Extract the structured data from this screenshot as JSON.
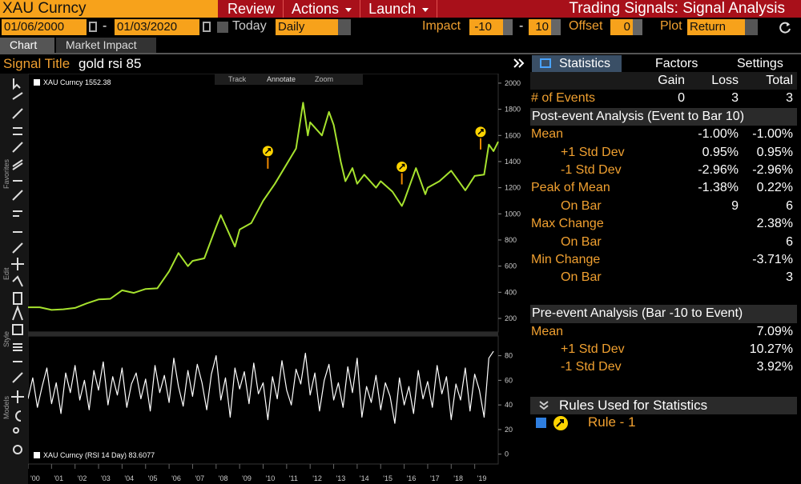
{
  "header": {
    "security": "XAU Curncy",
    "menus": [
      "Review",
      "Actions",
      "Launch"
    ],
    "function_title": "Trading Signals: Signal Analysis"
  },
  "controls": {
    "start_date": "01/06/2000",
    "range_separator": "-",
    "end_date": "01/03/2020",
    "today": "Today",
    "period": "Daily",
    "impact_label": "Impact",
    "impact_from": "-10",
    "impact_to": "10",
    "offset_label": "Offset",
    "offset": "0",
    "plot_label": "Plot",
    "plot": "Return"
  },
  "tabs": [
    "Chart",
    "Market Impact"
  ],
  "signal": {
    "label": "Signal Title",
    "name": "gold rsi 85"
  },
  "chart_tools": [
    "Track",
    "Annotate",
    "Zoom"
  ],
  "sidebar_labels": [
    "Favorites",
    "Edit",
    "Style",
    "Models"
  ],
  "chart_data": [
    {
      "type": "line",
      "x": [
        2000,
        2000.5,
        2001,
        2001.5,
        2002,
        2002.5,
        2003,
        2003.5,
        2004,
        2004.5,
        2005,
        2005.5,
        2006,
        2006.4,
        2006.8,
        2007,
        2007.5,
        2008,
        2008.2,
        2008.8,
        2009,
        2009.5,
        2010,
        2010.5,
        2011,
        2011.4,
        2011.7,
        2011.9,
        2012,
        2012.5,
        2012.8,
        2013,
        2013.3,
        2013.5,
        2013.8,
        2014,
        2014.3,
        2014.8,
        2015,
        2015.5,
        2015.9,
        2016,
        2016.5,
        2016.9,
        2017,
        2017.5,
        2018,
        2018.6,
        2019,
        2019.4,
        2019.6,
        2019.8,
        2020
      ],
      "series": [
        {
          "name": "XAU Curncy",
          "color": "#a6e22e",
          "values": [
            285,
            285,
            265,
            270,
            280,
            315,
            345,
            350,
            415,
            395,
            425,
            430,
            560,
            700,
            600,
            640,
            660,
            900,
            990,
            750,
            880,
            930,
            1100,
            1230,
            1380,
            1500,
            1850,
            1600,
            1700,
            1600,
            1780,
            1680,
            1400,
            1250,
            1350,
            1230,
            1300,
            1200,
            1250,
            1170,
            1060,
            1100,
            1350,
            1150,
            1200,
            1250,
            1330,
            1180,
            1290,
            1300,
            1530,
            1480,
            1552
          ]
        }
      ],
      "last_value": 1552.38,
      "xlim": [
        2000,
        2020
      ],
      "ylim": [
        96,
        2073
      ],
      "yticks": [
        200,
        400,
        600,
        800,
        1000,
        1200,
        1400,
        1600,
        1800,
        2000
      ],
      "events": {
        "x": [
          2010.2,
          2015.9,
          2019.25
        ],
        "values": [
          1480,
          1360,
          1627
        ],
        "color": "#ffd400"
      }
    },
    {
      "type": "line",
      "x": [
        2000,
        2000.2,
        2000.4,
        2000.6,
        2000.8,
        2001,
        2001.2,
        2001.4,
        2001.6,
        2001.8,
        2002,
        2002.2,
        2002.4,
        2002.6,
        2002.8,
        2003,
        2003.2,
        2003.4,
        2003.6,
        2003.8,
        2004,
        2004.2,
        2004.4,
        2004.6,
        2004.8,
        2005,
        2005.2,
        2005.4,
        2005.6,
        2005.8,
        2006,
        2006.2,
        2006.4,
        2006.6,
        2006.8,
        2007,
        2007.2,
        2007.4,
        2007.6,
        2007.8,
        2008,
        2008.2,
        2008.4,
        2008.6,
        2008.8,
        2009,
        2009.2,
        2009.4,
        2009.6,
        2009.8,
        2010,
        2010.2,
        2010.4,
        2010.6,
        2010.8,
        2011,
        2011.2,
        2011.4,
        2011.6,
        2011.8,
        2012,
        2012.2,
        2012.4,
        2012.6,
        2012.8,
        2013,
        2013.2,
        2013.4,
        2013.6,
        2013.8,
        2014,
        2014.2,
        2014.4,
        2014.6,
        2014.8,
        2015,
        2015.2,
        2015.4,
        2015.6,
        2015.8,
        2016,
        2016.2,
        2016.4,
        2016.6,
        2016.8,
        2017,
        2017.2,
        2017.4,
        2017.6,
        2017.8,
        2018,
        2018.2,
        2018.4,
        2018.6,
        2018.8,
        2019,
        2019.2,
        2019.4,
        2019.6,
        2019.8
      ],
      "series": [
        {
          "name": "XAU Curncy (RSI 14 Day)",
          "color": "#ffffff",
          "values": [
            45,
            62,
            38,
            55,
            70,
            41,
            58,
            33,
            66,
            50,
            72,
            44,
            60,
            36,
            68,
            52,
            75,
            40,
            63,
            48,
            70,
            38,
            57,
            66,
            45,
            61,
            35,
            72,
            50,
            64,
            42,
            78,
            55,
            39,
            68,
            47,
            73,
            58,
            36,
            65,
            80,
            44,
            62,
            30,
            70,
            53,
            67,
            41,
            74,
            49,
            58,
            28,
            63,
            45,
            76,
            52,
            40,
            69,
            57,
            82,
            48,
            66,
            35,
            60,
            73,
            44,
            58,
            38,
            71,
            50,
            78,
            30,
            55,
            42,
            64,
            36,
            58,
            47,
            25,
            62,
            40,
            55,
            33,
            68,
            45,
            59,
            38,
            72,
            49,
            63,
            28,
            57,
            44,
            70,
            35,
            65,
            52,
            30,
            78,
            83.6
          ]
        }
      ],
      "last_value": 83.6077,
      "xlim": [
        2000,
        2020
      ],
      "ylim": [
        -8,
        96
      ],
      "yticks": [
        0,
        20,
        40,
        60,
        80
      ],
      "xticks": [
        {
          "value": 2000,
          "label": "'00"
        },
        {
          "value": 2001,
          "label": "'01"
        },
        {
          "value": 2002,
          "label": "'02"
        },
        {
          "value": 2003,
          "label": "'03"
        },
        {
          "value": 2004,
          "label": "'04"
        },
        {
          "value": 2005,
          "label": "'05"
        },
        {
          "value": 2006,
          "label": "'06"
        },
        {
          "value": 2007,
          "label": "'07"
        },
        {
          "value": 2008,
          "label": "'08"
        },
        {
          "value": 2009,
          "label": "'09"
        },
        {
          "value": 2010,
          "label": "'10"
        },
        {
          "value": 2011,
          "label": "'11"
        },
        {
          "value": 2012,
          "label": "'12"
        },
        {
          "value": 2013,
          "label": "'13"
        },
        {
          "value": 2014,
          "label": "'14"
        },
        {
          "value": 2015,
          "label": "'15"
        },
        {
          "value": 2016,
          "label": "'16"
        },
        {
          "value": 2017,
          "label": "'17"
        },
        {
          "value": 2018,
          "label": "'18"
        },
        {
          "value": 2019,
          "label": "'19"
        }
      ]
    }
  ],
  "panel": {
    "tabs": [
      "Statistics",
      "Factors",
      "Settings"
    ],
    "columns": [
      "Gain",
      "Loss",
      "Total"
    ],
    "rows": [
      {
        "label": "# of Events",
        "gain": "0",
        "loss": "3",
        "total": "3"
      },
      {
        "section": "Post-event Analysis (Event to Bar 10)"
      },
      {
        "label": "Mean",
        "loss": "-1.00%",
        "total": "-1.00%"
      },
      {
        "label": "+1 Std Dev",
        "indent": true,
        "loss": "0.95%",
        "total": "0.95%"
      },
      {
        "label": "-1 Std Dev",
        "indent": true,
        "loss": "-2.96%",
        "total": "-2.96%"
      },
      {
        "label": "Peak of Mean",
        "loss": "-1.38%",
        "total": "0.22%"
      },
      {
        "label": "On Bar",
        "indent": true,
        "loss": "9",
        "total": "6"
      },
      {
        "label": "Max Change",
        "total": "2.38%"
      },
      {
        "label": "On Bar",
        "indent": true,
        "total": "6"
      },
      {
        "label": "Min Change",
        "total": "-3.71%"
      },
      {
        "label": "On Bar",
        "indent": true,
        "total": "3"
      },
      {
        "section": "Pre-event Analysis (Bar -10 to Event)"
      },
      {
        "label": "Mean",
        "total": "7.09%"
      },
      {
        "label": "+1 Std Dev",
        "indent": true,
        "total": "10.27%"
      },
      {
        "label": "-1 Std Dev",
        "indent": true,
        "total": "3.92%"
      }
    ],
    "rules_title": "Rules Used for Statistics",
    "rule": "Rule - 1"
  }
}
